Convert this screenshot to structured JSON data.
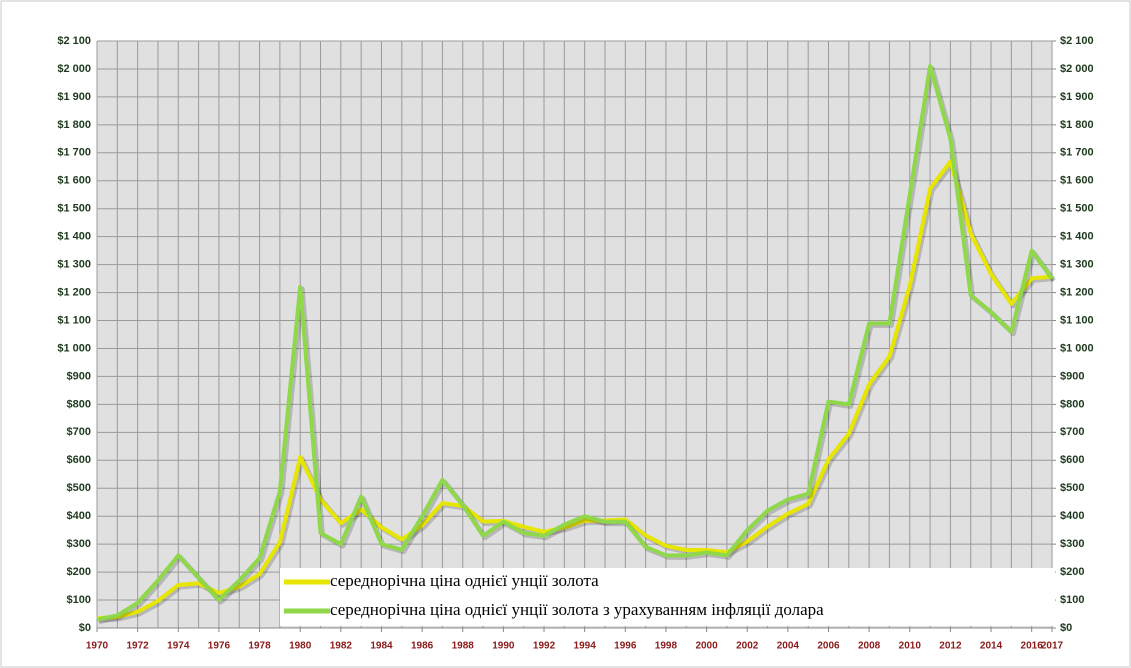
{
  "chart_data": {
    "type": "line",
    "x": [
      1970,
      1971,
      1972,
      1973,
      1974,
      1975,
      1976,
      1977,
      1978,
      1979,
      1980,
      1981,
      1982,
      1983,
      1984,
      1985,
      1986,
      1987,
      1988,
      1989,
      1990,
      1991,
      1992,
      1993,
      1994,
      1995,
      1996,
      1997,
      1998,
      1999,
      2000,
      2001,
      2002,
      2003,
      2004,
      2005,
      2006,
      2007,
      2008,
      2009,
      2010,
      2011,
      2012,
      2013,
      2014,
      2015,
      2016,
      2017
    ],
    "series": [
      {
        "name": "середнорічна ціна однієї унції золота",
        "color": "#e6e600",
        "values": [
          35,
          40,
          58,
          97,
          154,
          160,
          125,
          148,
          193,
          307,
          612,
          460,
          375,
          424,
          360,
          317,
          368,
          447,
          437,
          381,
          383,
          362,
          344,
          360,
          384,
          384,
          388,
          331,
          294,
          279,
          279,
          271,
          310,
          363,
          409,
          444,
          603,
          695,
          872,
          972,
          1225,
          1572,
          1669,
          1411,
          1266,
          1160,
          1251,
          1257
        ]
      },
      {
        "name": "середнорічна ціна однієї унції золота з урахуванням інфляції долара",
        "color": "#8ed84a",
        "values": [
          30,
          45,
          90,
          170,
          260,
          180,
          100,
          170,
          250,
          490,
          1220,
          340,
          300,
          470,
          300,
          280,
          400,
          530,
          440,
          330,
          380,
          340,
          330,
          370,
          400,
          380,
          380,
          290,
          260,
          260,
          270,
          260,
          350,
          420,
          460,
          480,
          810,
          800,
          1090,
          1090,
          1550,
          2010,
          1750,
          1190,
          1130,
          1060,
          1350,
          1250
        ]
      }
    ],
    "xlim": [
      1970,
      2017
    ],
    "xticks": [
      1970,
      1972,
      1974,
      1976,
      1978,
      1980,
      1982,
      1984,
      1986,
      1988,
      1990,
      1992,
      1994,
      1996,
      1998,
      2000,
      2002,
      2004,
      2006,
      2008,
      2010,
      2012,
      2014,
      2016,
      2017
    ],
    "ylim": [
      0,
      2100
    ],
    "yticks": [
      {
        "value": 0,
        "label": "$0"
      },
      {
        "value": 100,
        "label": "$100"
      },
      {
        "value": 200,
        "label": "$200"
      },
      {
        "value": 300,
        "label": "$300"
      },
      {
        "value": 400,
        "label": "$400"
      },
      {
        "value": 500,
        "label": "$500"
      },
      {
        "value": 600,
        "label": "$600"
      },
      {
        "value": 700,
        "label": "$700"
      },
      {
        "value": 800,
        "label": "$800"
      },
      {
        "value": 900,
        "label": "$900"
      },
      {
        "value": 1000,
        "label": "$1 000"
      },
      {
        "value": 1100,
        "label": "$1 100"
      },
      {
        "value": 1200,
        "label": "$1 200"
      },
      {
        "value": 1300,
        "label": "$1 300"
      },
      {
        "value": 1400,
        "label": "$1 400"
      },
      {
        "value": 1500,
        "label": "$1 500"
      },
      {
        "value": 1600,
        "label": "$1 600"
      },
      {
        "value": 1700,
        "label": "$1 700"
      },
      {
        "value": 1800,
        "label": "$1 800"
      },
      {
        "value": 1900,
        "label": "$1 900"
      },
      {
        "value": 2000,
        "label": "$2 000"
      },
      {
        "value": 2100,
        "label": "$2 100"
      }
    ],
    "y2lim": [
      0,
      2100
    ],
    "y2ticks": [
      {
        "value": 0,
        "label": "$0"
      },
      {
        "value": 100,
        "label": "$100"
      },
      {
        "value": 200,
        "label": "$200"
      },
      {
        "value": 300,
        "label": "$300"
      },
      {
        "value": 400,
        "label": "$400"
      },
      {
        "value": 500,
        "label": "$500"
      },
      {
        "value": 600,
        "label": "$600"
      },
      {
        "value": 700,
        "label": "$700"
      },
      {
        "value": 800,
        "label": "$800"
      },
      {
        "value": 900,
        "label": "$900"
      },
      {
        "value": 1000,
        "label": "$1 000"
      },
      {
        "value": 1100,
        "label": "$1 100"
      },
      {
        "value": 1200,
        "label": "$1 200"
      },
      {
        "value": 1300,
        "label": "$1 300"
      },
      {
        "value": 1400,
        "label": "$1 400"
      },
      {
        "value": 1500,
        "label": "$1 500"
      },
      {
        "value": 1600,
        "label": "$1 600"
      },
      {
        "value": 1700,
        "label": "$1 700"
      },
      {
        "value": 1800,
        "label": "$1 800"
      },
      {
        "value": 1900,
        "label": "$1 900"
      },
      {
        "value": 2000,
        "label": "$2 000"
      },
      {
        "value": 2100,
        "label": "$2 100"
      }
    ],
    "grid": true,
    "legend": "bottom"
  }
}
